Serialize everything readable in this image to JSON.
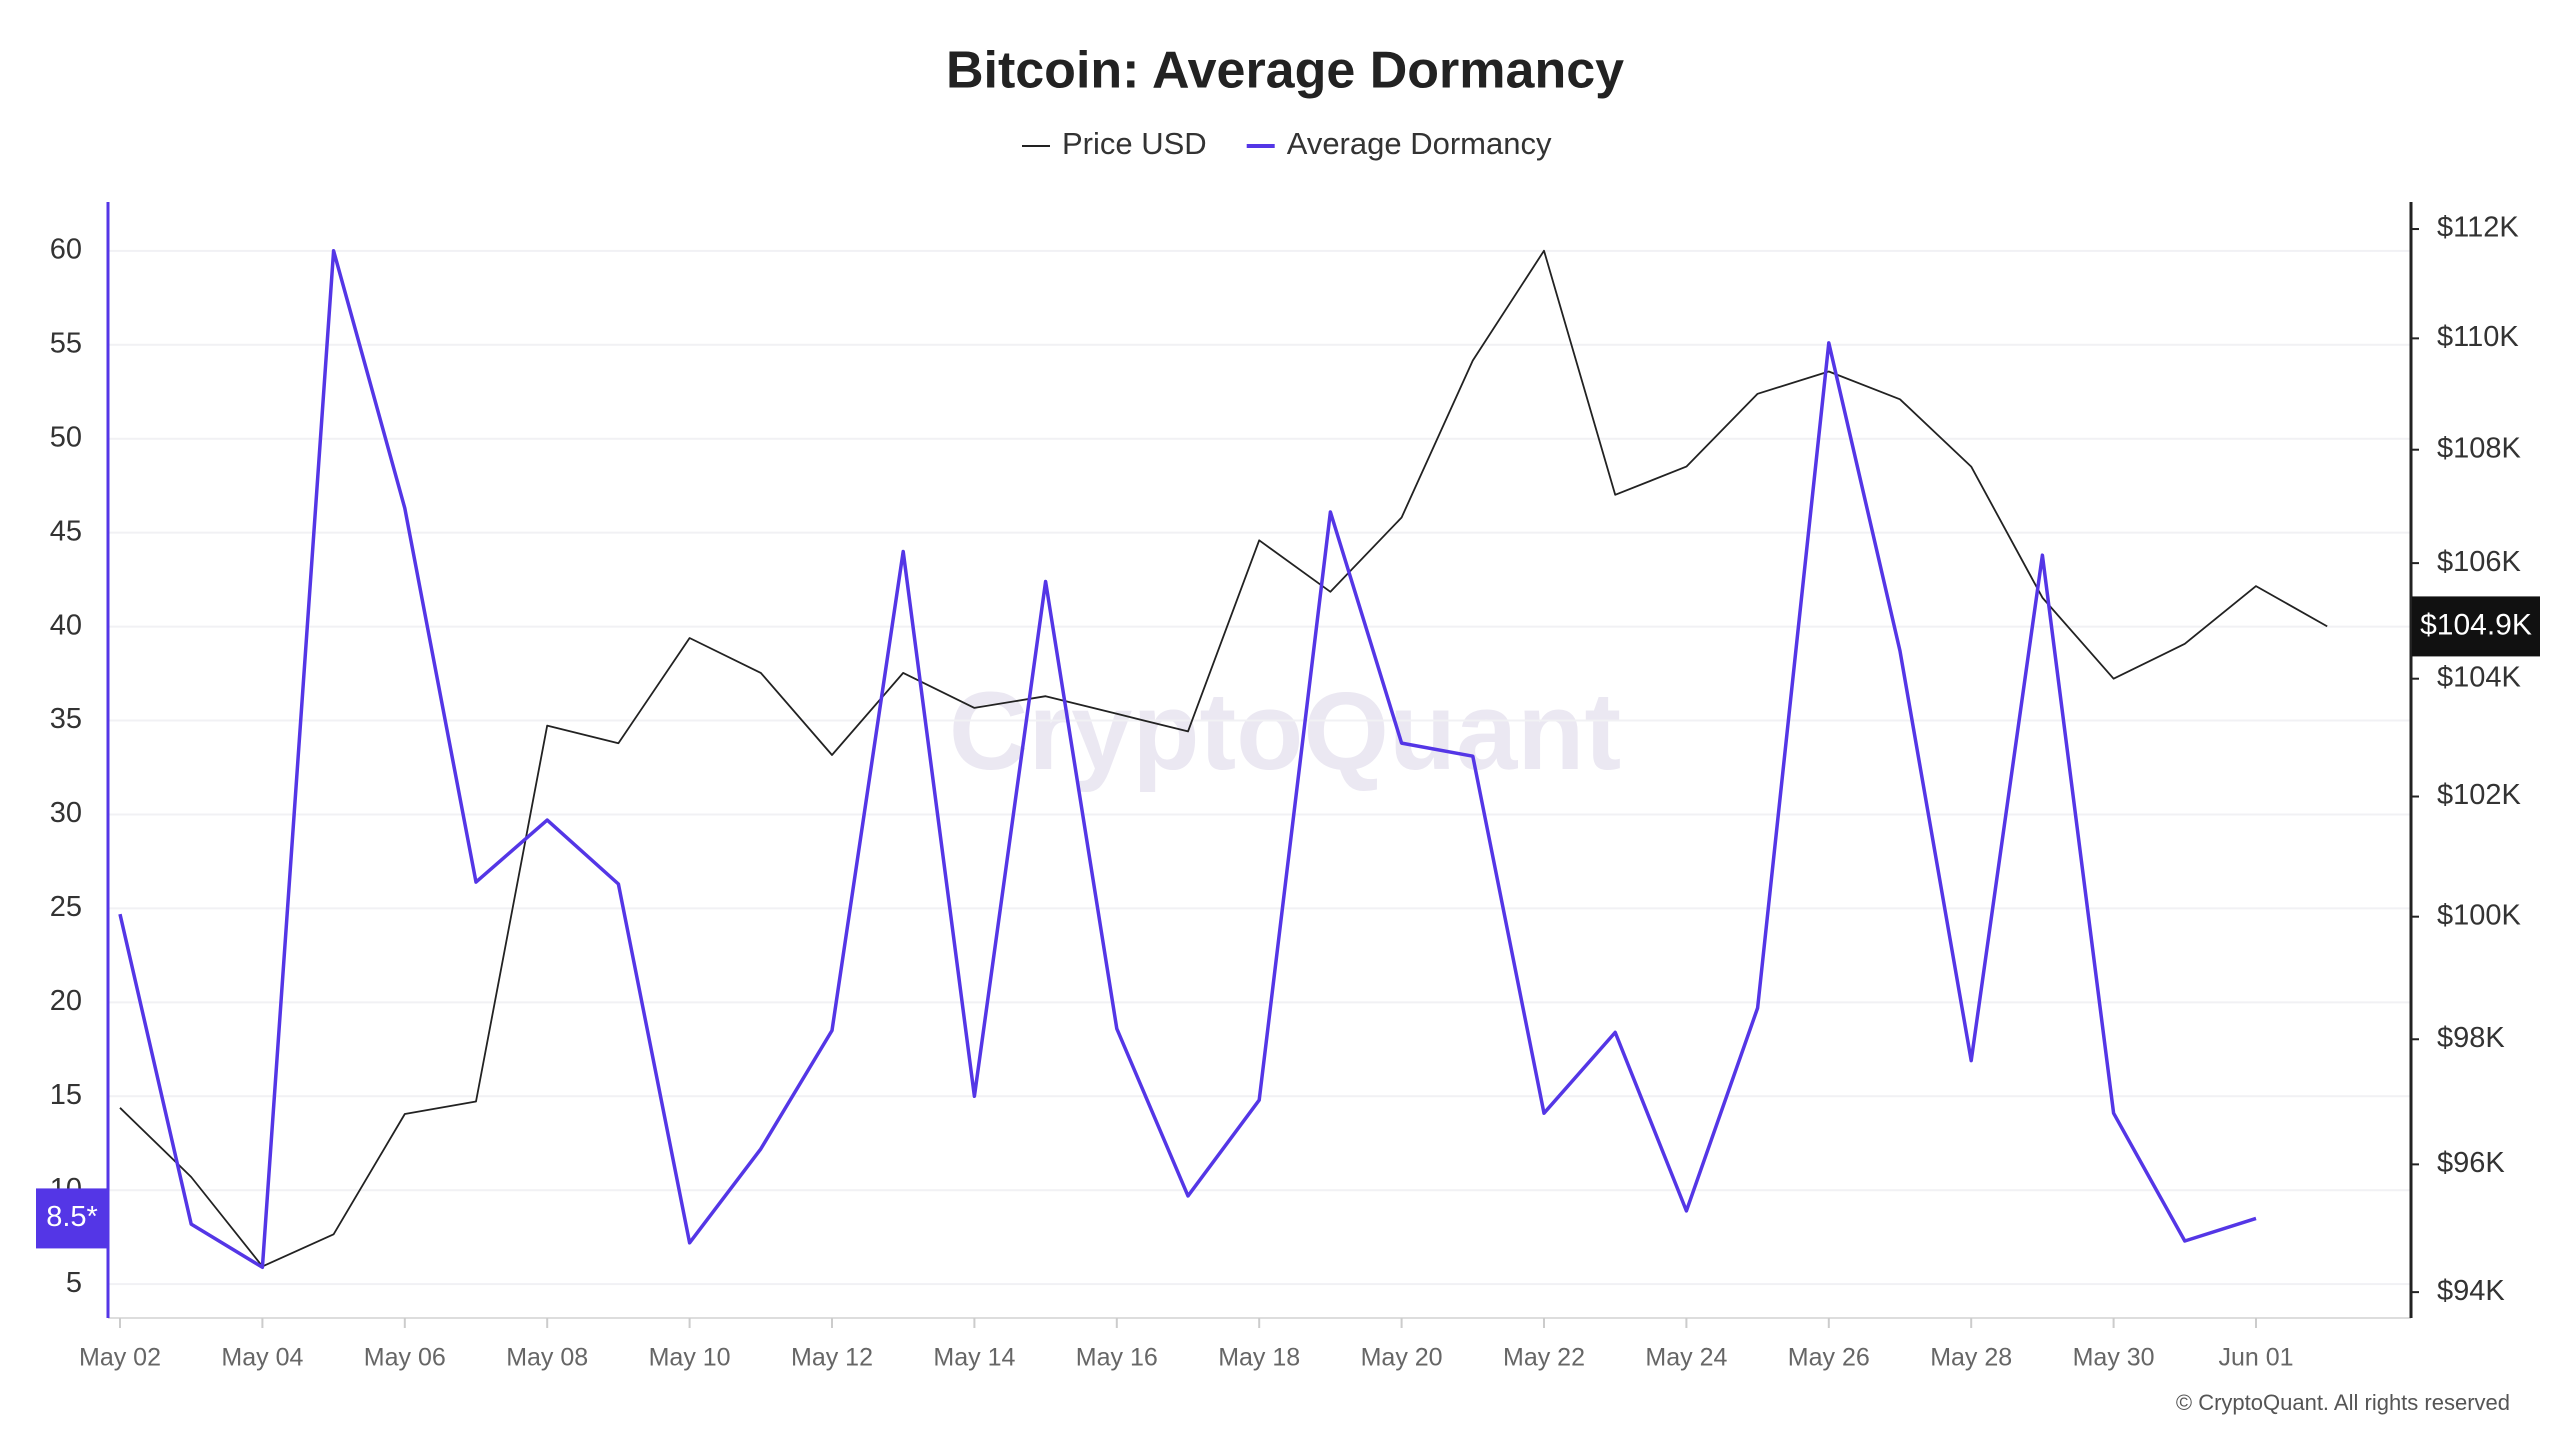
{
  "chart_data": {
    "type": "line",
    "title": "Bitcoin: Average Dormancy",
    "watermark": "CryptoQuant",
    "footer": "© CryptoQuant. All rights reserved",
    "categories": [
      "May 02",
      null,
      "May 04",
      null,
      "May 06",
      null,
      "May 08",
      null,
      "May 10",
      null,
      "May 12",
      null,
      "May 14",
      null,
      "May 16",
      null,
      "May 18",
      null,
      "May 20",
      null,
      "May 22",
      null,
      "May 24",
      null,
      "May 26",
      null,
      "May 28",
      null,
      "May 30",
      null,
      "Jun 01",
      null
    ],
    "series": [
      {
        "name": "Price USD",
        "color": "#222222",
        "axis": "y2",
        "values": [
          96900,
          95800,
          94400,
          94900,
          96800,
          97000,
          103200,
          102900,
          104700,
          104100,
          102700,
          104100,
          103500,
          103700,
          103400,
          103100,
          106400,
          105500,
          106800,
          109600,
          111600,
          107200,
          107700,
          109000,
          109400,
          108900,
          107700,
          105400,
          104000,
          104600,
          105600,
          104900
        ]
      },
      {
        "name": "Average Dormancy",
        "color": "#5436e6",
        "values": [
          24.7,
          8.2,
          5.9,
          60,
          46.3,
          26.4,
          29.7,
          26.3,
          7.2,
          12.2,
          18.5,
          44.0,
          15.0,
          42.4,
          18.6,
          9.7,
          14.8,
          46.1,
          33.8,
          33.1,
          14.1,
          18.4,
          8.9,
          19.7,
          55.1,
          38.7,
          16.9,
          43.8,
          14.1,
          7.3,
          8.5,
          null
        ]
      }
    ],
    "ylim": [
      3.2,
      62.6
    ],
    "yticks": [
      5,
      10,
      15,
      20,
      25,
      30,
      35,
      40,
      45,
      50,
      55,
      60
    ],
    "y2lim": [
      93600,
      112500
    ],
    "y2log": true,
    "y2ticks": [
      {
        "value": 94000,
        "label": "$94K"
      },
      {
        "value": 96000,
        "label": "$96K"
      },
      {
        "value": 98000,
        "label": "$98K"
      },
      {
        "value": 100000,
        "label": "$100K"
      },
      {
        "value": 102000,
        "label": "$102K"
      },
      {
        "value": 104000,
        "label": "$104K"
      },
      {
        "value": 106000,
        "label": "$106K"
      },
      {
        "value": 108000,
        "label": "$108K"
      },
      {
        "value": 110000,
        "label": "$110K"
      },
      {
        "value": 112000,
        "label": "$112K"
      }
    ],
    "y_marker": {
      "value": 8.5,
      "label": "8.5*"
    },
    "y2_marker": {
      "value": 104900,
      "label": "$104.9K"
    },
    "grid": true
  }
}
